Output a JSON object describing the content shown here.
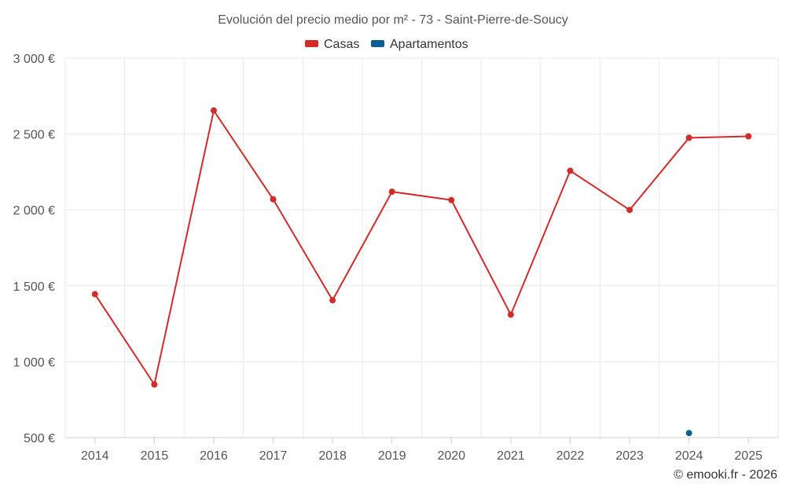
{
  "chart_data": {
    "type": "line",
    "title": "Evolución del precio medio por m² - 73 - Saint-Pierre-de-Soucy",
    "categories": [
      "2014",
      "2015",
      "2016",
      "2017",
      "2018",
      "2019",
      "2020",
      "2021",
      "2022",
      "2023",
      "2024",
      "2025"
    ],
    "y_ticks": [
      "500 €",
      "1 000 €",
      "1 500 €",
      "2 000 €",
      "2 500 €",
      "3 000 €"
    ],
    "y_tick_values": [
      500,
      1000,
      1500,
      2000,
      2500,
      3000
    ],
    "ylim": [
      500,
      3000
    ],
    "grid": true,
    "legend_position": "top-center",
    "series": [
      {
        "name": "Casas",
        "color": "#d32a2a",
        "values": [
          1445,
          850,
          2655,
          2070,
          1405,
          2120,
          2065,
          1310,
          2258,
          2000,
          2475,
          2485
        ]
      },
      {
        "name": "Apartamentos",
        "color": "#0a5e93",
        "values": [
          null,
          null,
          null,
          null,
          null,
          null,
          null,
          null,
          null,
          null,
          530,
          null
        ]
      }
    ],
    "credit": "© emooki.fr - 2026"
  }
}
